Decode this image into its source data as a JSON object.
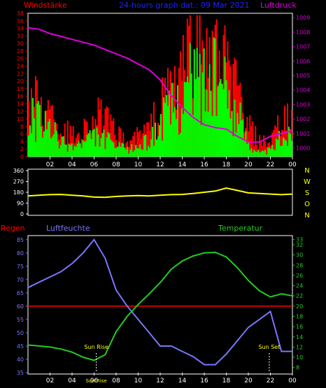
{
  "chart_data": [
    {
      "type": "bar",
      "labels": {
        "left": "Windstärke",
        "title": "24-hours graph dat.: 09 Mar 2021",
        "right": "Luftdruck"
      },
      "x_ticks": [
        "02",
        "04",
        "06",
        "08",
        "10",
        "12",
        "14",
        "16",
        "18",
        "20",
        "22",
        "00"
      ],
      "y_left_ticks": [
        "0",
        "2",
        "4",
        "6",
        "8",
        "10",
        "12",
        "14",
        "16",
        "18",
        "20",
        "22",
        "24",
        "26",
        "28",
        "30",
        "32",
        "34",
        "36",
        "38"
      ],
      "y_left_range": [
        0,
        38
      ],
      "y_right_ticks": [
        "1000",
        "1001",
        "1002",
        "1003",
        "1004",
        "1005",
        "1006",
        "1007",
        "1008",
        "1009"
      ],
      "y_right_range": [
        999.4,
        1009.3
      ],
      "series": [
        {
          "name": "",
          "color": "#ff0000",
          "x": [
            0,
            1,
            2,
            3,
            4,
            5,
            6,
            7,
            8,
            9,
            10,
            11,
            12,
            13,
            14,
            15,
            16,
            17,
            18,
            19,
            20,
            21,
            22,
            23,
            24
          ],
          "values": [
            18,
            14,
            12,
            8,
            6,
            8,
            12,
            10,
            6,
            4,
            6,
            8,
            14,
            20,
            24,
            30,
            28,
            26,
            24,
            18,
            8,
            4,
            4,
            10,
            10
          ]
        },
        {
          "name": "",
          "color": "#00ff00",
          "x": [
            0,
            1,
            2,
            3,
            4,
            5,
            6,
            7,
            8,
            9,
            10,
            11,
            12,
            13,
            14,
            15,
            16,
            17,
            18,
            19,
            20,
            21,
            22,
            23,
            24
          ],
          "values": [
            12,
            10,
            8,
            4,
            3,
            4,
            6,
            5,
            3,
            2,
            3,
            5,
            10,
            14,
            18,
            24,
            22,
            22,
            18,
            12,
            4,
            1,
            2,
            6,
            6
          ]
        },
        {
          "name": "",
          "color": "#dd00dd",
          "x": [
            0,
            1,
            2,
            3,
            4,
            5,
            6,
            7,
            8,
            9,
            10,
            11,
            12,
            13,
            14,
            15,
            16,
            17,
            18,
            19,
            20,
            21,
            22,
            23,
            24
          ],
          "values": [
            1008.3,
            1008.2,
            1007.9,
            1007.7,
            1007.5,
            1007.3,
            1007.1,
            1006.8,
            1006.5,
            1006.2,
            1005.8,
            1005.4,
            1004.7,
            1003.6,
            1002.8,
            1002.1,
            1001.6,
            1001.4,
            1001.3,
            1000.8,
            1000.4,
            1000.4,
            1000.8,
            1001.0,
            1001.2
          ]
        }
      ]
    },
    {
      "type": "line",
      "x_ticks": [
        "02",
        "04",
        "06",
        "08",
        "10",
        "12",
        "14",
        "16",
        "18",
        "20",
        "22",
        "00"
      ],
      "y_ticks": [
        "0",
        "90",
        "180",
        "270",
        "360"
      ],
      "y_range": [
        0,
        360
      ],
      "direction_labels": [
        "N",
        "W",
        "S",
        "O",
        "N"
      ],
      "series": [
        {
          "name": "",
          "color": "#ffff00",
          "x": [
            0,
            1,
            2,
            3,
            4,
            5,
            6,
            7,
            8,
            9,
            10,
            11,
            12,
            13,
            14,
            15,
            16,
            17,
            18,
            19,
            20,
            21,
            22,
            23,
            24
          ],
          "values": [
            150,
            155,
            160,
            162,
            155,
            150,
            140,
            138,
            145,
            150,
            152,
            150,
            155,
            160,
            162,
            170,
            180,
            190,
            215,
            195,
            175,
            170,
            165,
            160,
            165
          ]
        }
      ]
    },
    {
      "type": "line",
      "labels": {
        "left": "Regen",
        "humidity": "Luftfeuchte",
        "temperature": "Temperatur"
      },
      "x_ticks": [
        "02",
        "04",
        "06",
        "08",
        "10",
        "12",
        "14",
        "16",
        "18",
        "20",
        "22",
        "00"
      ],
      "y_left_ticks": [
        "35",
        "40",
        "45",
        "50",
        "55",
        "60",
        "65",
        "70",
        "75",
        "80",
        "85"
      ],
      "y_left_range": [
        35,
        86
      ],
      "y_right_ticks": [
        "8",
        "10",
        "12",
        "14",
        "16",
        "18",
        "20",
        "22",
        "24",
        "26",
        "28",
        "30",
        "32",
        "33"
      ],
      "y_right_range": [
        7,
        33.5
      ],
      "red_left_tick": "0",
      "events": [
        {
          "label": "Sun Rise",
          "x": 6.2
        },
        {
          "label": "Sun Set",
          "x": 21.9
        }
      ],
      "extra_tick_label": "Sun Rise",
      "series": [
        {
          "name": "",
          "color": "#7777ff",
          "x": [
            0,
            1,
            2,
            3,
            4,
            5,
            6,
            7,
            8,
            9,
            10,
            11,
            12,
            13,
            14,
            15,
            16,
            17,
            18,
            19,
            20,
            21,
            22,
            23,
            24
          ],
          "values": [
            67,
            69,
            71,
            73,
            76,
            80,
            85,
            78,
            66,
            60,
            55,
            50,
            45,
            45,
            43,
            41,
            38,
            38,
            42,
            47,
            52,
            55,
            58,
            43,
            43
          ]
        },
        {
          "name": "",
          "color": "#22cc22",
          "x": [
            0,
            1,
            2,
            3,
            4,
            5,
            6,
            7,
            8,
            9,
            10,
            11,
            12,
            13,
            14,
            15,
            16,
            17,
            18,
            19,
            20,
            21,
            22,
            23,
            24
          ],
          "values": [
            12.4,
            12.2,
            12.0,
            11.6,
            11.0,
            10.0,
            9.4,
            10.5,
            15.0,
            18.0,
            20.3,
            22.4,
            24.6,
            27.2,
            28.8,
            29.8,
            30.4,
            30.5,
            29.6,
            27.5,
            25.0,
            23.0,
            21.8,
            22.4,
            22.0
          ]
        },
        {
          "name": "",
          "color": "#ff0000",
          "x": [
            0,
            24
          ],
          "values": [
            60,
            60
          ]
        }
      ]
    }
  ]
}
